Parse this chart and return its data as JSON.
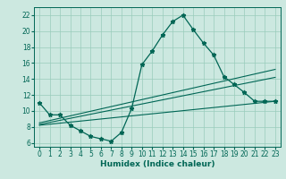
{
  "xlabel": "Humidex (Indice chaleur)",
  "ylabel": "",
  "x_ticks": [
    0,
    1,
    2,
    3,
    4,
    5,
    6,
    7,
    8,
    9,
    10,
    11,
    12,
    13,
    14,
    15,
    16,
    17,
    18,
    19,
    20,
    21,
    22,
    23
  ],
  "y_ticks": [
    6,
    8,
    10,
    12,
    14,
    16,
    18,
    20,
    22
  ],
  "ylim": [
    5.5,
    23.0
  ],
  "xlim": [
    -0.5,
    23.5
  ],
  "bg_color": "#cce8e0",
  "grid_color": "#99ccbb",
  "line_color": "#006655",
  "main_y": [
    11,
    9.5,
    9.5,
    8.2,
    7.5,
    6.8,
    6.5,
    6.2,
    7.3,
    10.3,
    15.8,
    17.5,
    19.5,
    21.2,
    22.0,
    20.2,
    18.5,
    17.0,
    14.3,
    13.3,
    12.3,
    11.2,
    11.2,
    11.2
  ],
  "line2_start_x": 0,
  "line2_start_y": 8.2,
  "line2_end_x": 23,
  "line2_end_y": 11.2,
  "line3_start_x": 0,
  "line3_start_y": 8.5,
  "line3_end_x": 23,
  "line3_end_y": 15.2,
  "line4_start_x": 0,
  "line4_start_y": 8.3,
  "line4_end_x": 23,
  "line4_end_y": 14.2,
  "tick_labelsize": 5.5,
  "xlabel_fontsize": 6.5
}
